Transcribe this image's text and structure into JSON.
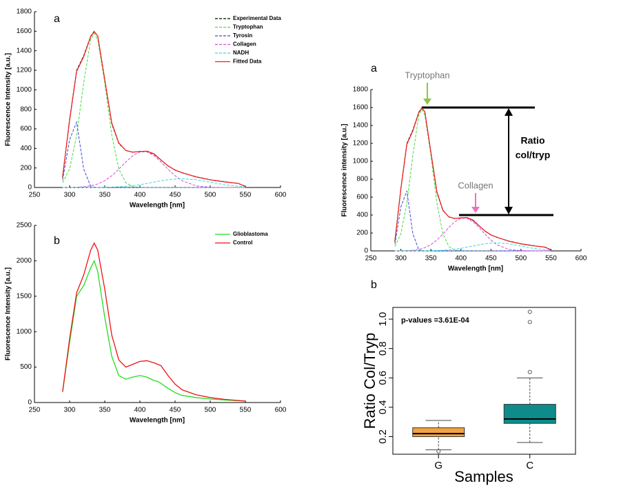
{
  "chart_data": [
    {
      "type": "line",
      "panel_label": "a",
      "xlabel": "Wavelength [nm]",
      "ylabel": "Fluorescence Intensity [a.u.]",
      "xlim": [
        250,
        600
      ],
      "xticks": [
        250,
        300,
        350,
        400,
        450,
        500,
        550,
        600
      ],
      "ylim": [
        0,
        1800
      ],
      "yticks": [
        0,
        200,
        400,
        600,
        800,
        1000,
        1200,
        1400,
        1600,
        1800
      ],
      "legend": "upper right",
      "x": [
        290,
        300,
        310,
        320,
        330,
        335,
        340,
        350,
        360,
        370,
        380,
        390,
        400,
        410,
        420,
        430,
        440,
        450,
        460,
        480,
        500,
        520,
        540,
        550
      ],
      "series": [
        {
          "name": "Experimental Data",
          "color": "#000000",
          "linestyle": "dashed",
          "values": [
            100,
            700,
            1200,
            1350,
            1550,
            1600,
            1550,
            1100,
            650,
            450,
            380,
            360,
            370,
            370,
            340,
            280,
            220,
            180,
            150,
            110,
            80,
            60,
            40,
            10
          ]
        },
        {
          "name": "Tryptophan",
          "color": "#44dd44",
          "linestyle": "dashed",
          "values": [
            48,
            190,
            535,
            1070,
            1515,
            1580,
            1515,
            1070,
            535,
            190,
            48,
            9,
            1,
            0,
            0,
            0,
            0,
            0,
            0,
            0,
            0,
            0,
            0,
            0
          ]
        },
        {
          "name": "Tyrosin",
          "color": "#4444dd",
          "linestyle": "dashed",
          "values": [
            75,
            490,
            670,
            190,
            12,
            2,
            0,
            0,
            0,
            0,
            0,
            0,
            0,
            0,
            0,
            0,
            0,
            0,
            0,
            0,
            0,
            0,
            0,
            0
          ]
        },
        {
          "name": "Collagen",
          "color": "#dd44dd",
          "linestyle": "dashed",
          "values": [
            0,
            1,
            2,
            7,
            17,
            25,
            36,
            69,
            121,
            188,
            262,
            326,
            365,
            365,
            326,
            262,
            188,
            121,
            69,
            16,
            2,
            0,
            0,
            0
          ]
        },
        {
          "name": "NADH",
          "color": "#33dddd",
          "linestyle": "dashed",
          "values": [
            0,
            0,
            0,
            0,
            0,
            0,
            1,
            2,
            4,
            7,
            12,
            20,
            29,
            41,
            55,
            68,
            80,
            87,
            90,
            80,
            55,
            29,
            12,
            7
          ]
        },
        {
          "name": "Fitted Data",
          "color": "#ee2222",
          "linestyle": "solid",
          "values": [
            110,
            690,
            1190,
            1340,
            1545,
            1595,
            1552,
            1105,
            660,
            455,
            378,
            362,
            368,
            372,
            345,
            282,
            222,
            178,
            152,
            108,
            78,
            58,
            42,
            12
          ]
        }
      ]
    },
    {
      "type": "line",
      "panel_label": "b",
      "xlabel": "Wavelength [nm]",
      "ylabel": "Fluorescence Intensity [a.u.]",
      "xlim": [
        250,
        600
      ],
      "xticks": [
        250,
        300,
        350,
        400,
        450,
        500,
        550,
        600
      ],
      "ylim": [
        0,
        2500
      ],
      "yticks": [
        0,
        500,
        1000,
        1500,
        2000,
        2500
      ],
      "legend": "upper right",
      "x": [
        290,
        300,
        310,
        320,
        330,
        335,
        340,
        350,
        360,
        370,
        380,
        390,
        400,
        410,
        420,
        425,
        430,
        440,
        450,
        460,
        480,
        500,
        520,
        550
      ],
      "series": [
        {
          "name": "Glioblastoma",
          "color": "#22dd22",
          "linestyle": "solid",
          "values": [
            150,
            850,
            1500,
            1650,
            1900,
            2000,
            1850,
            1200,
            650,
            380,
            330,
            360,
            380,
            360,
            310,
            300,
            270,
            200,
            140,
            100,
            70,
            50,
            35,
            20
          ]
        },
        {
          "name": "Control",
          "color": "#ee1111",
          "linestyle": "solid",
          "values": [
            150,
            900,
            1550,
            1800,
            2150,
            2250,
            2150,
            1600,
            950,
            600,
            500,
            540,
            580,
            590,
            560,
            540,
            520,
            380,
            260,
            180,
            110,
            70,
            45,
            20
          ]
        }
      ]
    },
    {
      "type": "line",
      "panel_label": "a",
      "xlabel": "Wavelength [nm]",
      "ylabel": "Fluorescence intensity [a.u.]",
      "annotations": [
        "Tryptophan",
        "Collagen",
        "Ratio",
        "col/tryp"
      ],
      "xlim": [
        250,
        600
      ],
      "xticks": [
        250,
        300,
        350,
        400,
        450,
        500,
        550,
        600
      ],
      "ylim": [
        0,
        1800
      ],
      "yticks": [
        0,
        200,
        400,
        600,
        800,
        1000,
        1200,
        1400,
        1600,
        1800
      ],
      "x": [
        290,
        300,
        310,
        320,
        330,
        335,
        340,
        350,
        360,
        370,
        380,
        390,
        400,
        410,
        420,
        430,
        440,
        450,
        460,
        480,
        500,
        520,
        540,
        550
      ],
      "series": [
        {
          "name": "Experimental Data",
          "color": "#000000",
          "linestyle": "dashed",
          "values": [
            100,
            700,
            1200,
            1350,
            1550,
            1600,
            1550,
            1100,
            650,
            450,
            380,
            360,
            370,
            370,
            340,
            280,
            220,
            180,
            150,
            110,
            80,
            60,
            40,
            10
          ]
        },
        {
          "name": "Tryptophan",
          "color": "#44dd44",
          "linestyle": "dashed",
          "values": [
            48,
            190,
            535,
            1070,
            1515,
            1580,
            1515,
            1070,
            535,
            190,
            48,
            9,
            1,
            0,
            0,
            0,
            0,
            0,
            0,
            0,
            0,
            0,
            0,
            0
          ]
        },
        {
          "name": "Tyrosin",
          "color": "#4444dd",
          "linestyle": "dashed",
          "values": [
            75,
            490,
            670,
            190,
            12,
            2,
            0,
            0,
            0,
            0,
            0,
            0,
            0,
            0,
            0,
            0,
            0,
            0,
            0,
            0,
            0,
            0,
            0,
            0
          ]
        },
        {
          "name": "Collagen",
          "color": "#dd44dd",
          "linestyle": "dashed",
          "values": [
            0,
            1,
            2,
            7,
            17,
            25,
            36,
            69,
            121,
            188,
            262,
            326,
            365,
            365,
            326,
            262,
            188,
            121,
            69,
            16,
            2,
            0,
            0,
            0
          ]
        },
        {
          "name": "NADH",
          "color": "#33dddd",
          "linestyle": "dashed",
          "values": [
            0,
            0,
            0,
            0,
            0,
            0,
            1,
            2,
            4,
            7,
            12,
            20,
            29,
            41,
            55,
            68,
            80,
            87,
            90,
            80,
            55,
            29,
            12,
            7
          ]
        },
        {
          "name": "Fitted Data",
          "color": "#ee2222",
          "linestyle": "solid",
          "values": [
            110,
            690,
            1190,
            1340,
            1545,
            1595,
            1552,
            1105,
            660,
            455,
            378,
            362,
            368,
            372,
            345,
            282,
            222,
            178,
            152,
            108,
            78,
            58,
            42,
            12
          ]
        }
      ]
    },
    {
      "type": "box",
      "panel_label": "b",
      "xlabel": "Samples",
      "ylabel": "Ratio Col/Tryp",
      "annotation": "p-values =3.61E-04",
      "categories": [
        "G",
        "C"
      ],
      "colors": [
        "#f2a345",
        "#0e8c8c"
      ],
      "ylim": [
        0.08,
        1.08
      ],
      "yticks": [
        0.2,
        0.4,
        0.6,
        0.8,
        {
          "value": 1,
          "label": "1.0"
        }
      ],
      "boxes": [
        {
          "min": 0.11,
          "q1": 0.2,
          "median": 0.22,
          "q3": 0.26,
          "max": 0.31,
          "outliers": [
            0.1
          ]
        },
        {
          "min": 0.16,
          "q1": 0.29,
          "median": 0.32,
          "q3": 0.42,
          "max": 0.6,
          "outliers": [
            0.64,
            0.98,
            1.05
          ]
        }
      ]
    }
  ]
}
